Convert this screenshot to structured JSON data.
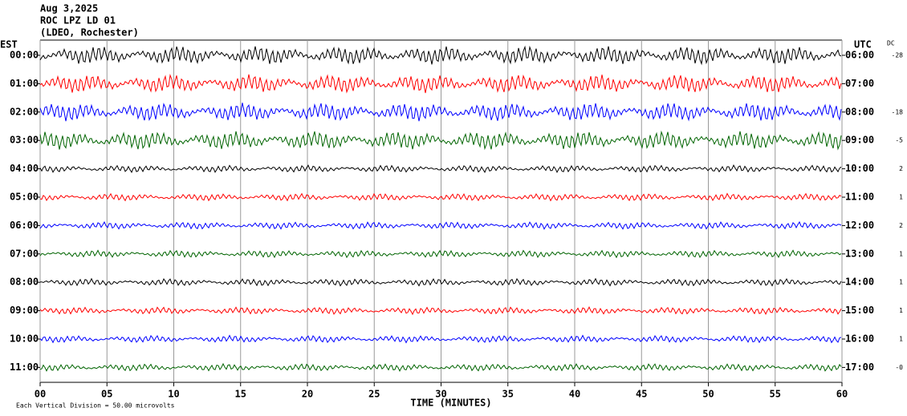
{
  "chart_data": {
    "type": "helicorder",
    "title_lines": [
      "Aug 3,2025",
      "ROC LPZ LD 01",
      "(LDEO, Rochester)"
    ],
    "left_axis_label": "EST",
    "right_axis_label": "UTC",
    "dc_label": "DC",
    "xlabel": "TIME (MINUTES)",
    "footer": "Each Vertical Division =   50.00 microvolts",
    "xlim": [
      0,
      60
    ],
    "xticks": [
      {
        "value": 0,
        "label": "00"
      },
      {
        "value": 5,
        "label": "05"
      },
      10,
      15,
      20,
      25,
      30,
      35,
      40,
      45,
      50,
      55,
      60
    ],
    "grid": true,
    "rows": [
      {
        "est": "00:00",
        "utc": "06:00",
        "dc": "-28",
        "color": "#000000"
      },
      {
        "est": "01:00",
        "utc": "07:00",
        "dc": null,
        "color": "#ff0000"
      },
      {
        "est": "02:00",
        "utc": "08:00",
        "dc": "-18",
        "color": "#0000ff"
      },
      {
        "est": "03:00",
        "utc": "09:00",
        "dc": "-5",
        "color": "#006400"
      },
      {
        "est": "04:00",
        "utc": "10:00",
        "dc": "2",
        "color": "#000000"
      },
      {
        "est": "05:00",
        "utc": "11:00",
        "dc": "1",
        "color": "#ff0000"
      },
      {
        "est": "06:00",
        "utc": "12:00",
        "dc": "2",
        "color": "#0000ff"
      },
      {
        "est": "07:00",
        "utc": "13:00",
        "dc": "1",
        "color": "#006400"
      },
      {
        "est": "08:00",
        "utc": "14:00",
        "dc": "1",
        "color": "#000000"
      },
      {
        "est": "09:00",
        "utc": "15:00",
        "dc": "1",
        "color": "#ff0000"
      },
      {
        "est": "10:00",
        "utc": "16:00",
        "dc": "1",
        "color": "#0000ff"
      },
      {
        "est": "11:00",
        "utc": "17:00",
        "dc": "-0",
        "color": "#006400"
      }
    ]
  }
}
